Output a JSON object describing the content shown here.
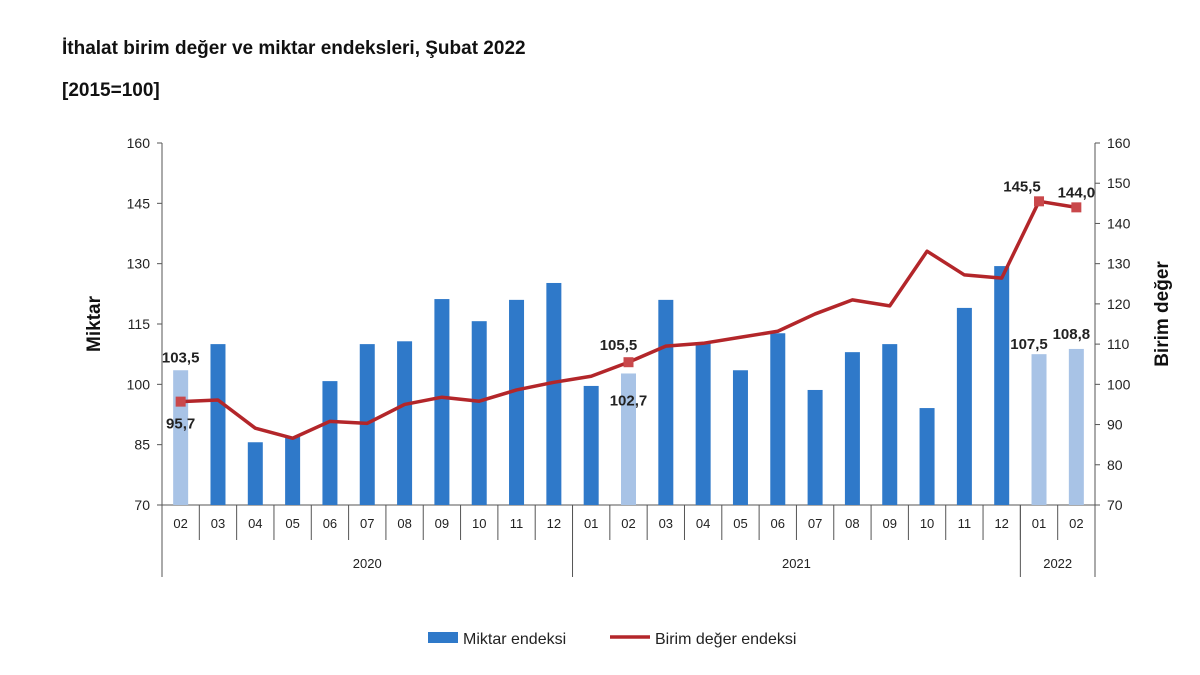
{
  "chart_data": {
    "type": "bar+line",
    "title": "İthalat birim değer ve miktar endeksleri, Şubat 2022",
    "subtitle": "[2015=100]",
    "ylabel_left": "Miktar",
    "ylabel_right": "Birim değer",
    "ylim_left": [
      70,
      160
    ],
    "ylim_right": [
      70,
      160
    ],
    "yticks_left": [
      70,
      85,
      100,
      115,
      130,
      145,
      160
    ],
    "yticks_right": [
      70,
      80,
      90,
      100,
      110,
      120,
      130,
      140,
      150,
      160
    ],
    "categories": [
      "02",
      "03",
      "04",
      "05",
      "06",
      "07",
      "08",
      "09",
      "10",
      "11",
      "12",
      "01",
      "02",
      "03",
      "04",
      "05",
      "06",
      "07",
      "08",
      "09",
      "10",
      "11",
      "12",
      "01",
      "02"
    ],
    "years": [
      {
        "label": "2020",
        "count": 11
      },
      {
        "label": "2021",
        "count": 12
      },
      {
        "label": "2022",
        "count": 2
      }
    ],
    "highlighted": [
      0,
      12,
      23,
      24
    ],
    "series": [
      {
        "name": "Miktar endeksi",
        "type": "bar",
        "axis": "left",
        "color": "#2f79c9",
        "highlight_color": "#a8c3e6",
        "values": [
          103.5,
          110,
          85.6,
          87,
          100.8,
          110,
          110.7,
          121.2,
          115.7,
          121,
          125.2,
          99.6,
          102.7,
          121,
          110.5,
          103.5,
          112.7,
          98.6,
          108,
          110,
          94.1,
          119,
          129.4,
          107.5,
          108.8
        ],
        "labels": {
          "0": "103,5",
          "12": "102,7",
          "23": "107,5",
          "24": "108,8"
        }
      },
      {
        "name": "Birim değer endeksi",
        "type": "line",
        "axis": "right",
        "color": "#b3262a",
        "values": [
          95.7,
          96.1,
          89.1,
          86.6,
          90.8,
          90.3,
          95,
          96.8,
          95.8,
          98.6,
          100.5,
          102,
          105.5,
          109.5,
          110.2,
          111.7,
          113.2,
          117.5,
          121,
          119.5,
          133.1,
          127.2,
          126.4,
          145.5,
          144.0
        ],
        "labels": {
          "0": "95,7",
          "12": "105,5",
          "23": "145,5",
          "24": "144,0"
        }
      }
    ],
    "legend_position": "bottom",
    "grid": false
  }
}
